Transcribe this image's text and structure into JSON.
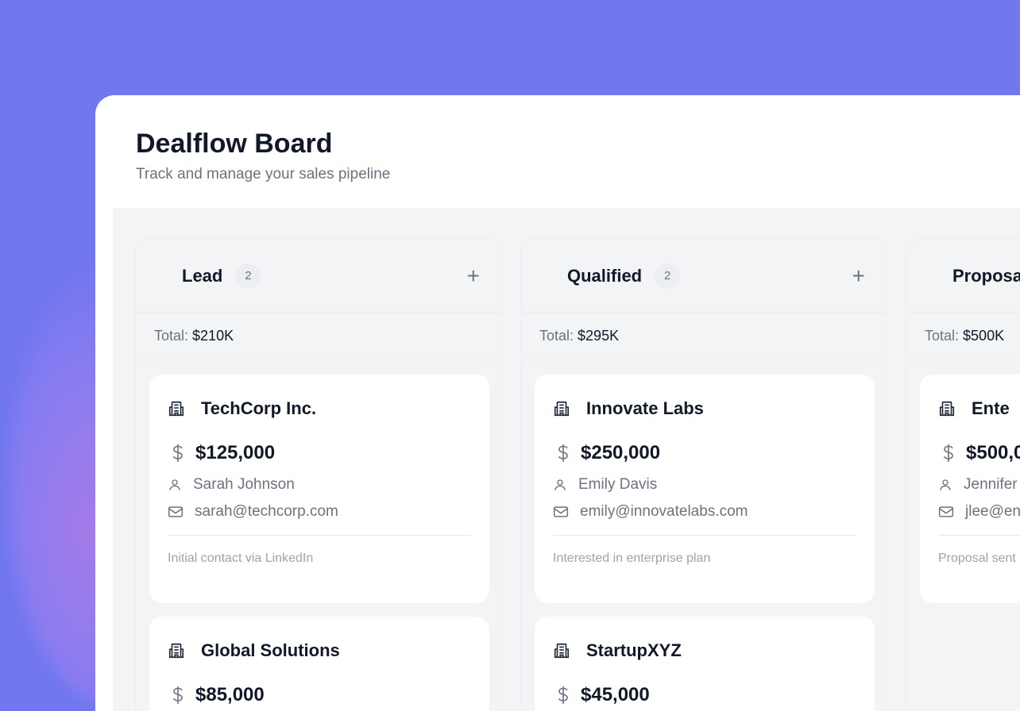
{
  "header": {
    "title": "Dealflow Board",
    "subtitle": "Track and manage your sales pipeline"
  },
  "colors": {
    "background": "#7077ef",
    "accent_text": "#111827",
    "muted_text": "#6b7280"
  },
  "columns": [
    {
      "name": "Lead",
      "count": "2",
      "total_label": "Total:",
      "total": "$210K",
      "cards": [
        {
          "company": "TechCorp Inc.",
          "amount": "$125,000",
          "contact": "Sarah Johnson",
          "email": "sarah@techcorp.com",
          "note": "Initial contact via LinkedIn"
        },
        {
          "company": "Global Solutions",
          "amount": "$85,000"
        }
      ]
    },
    {
      "name": "Qualified",
      "count": "2",
      "total_label": "Total:",
      "total": "$295K",
      "cards": [
        {
          "company": "Innovate Labs",
          "amount": "$250,000",
          "contact": "Emily Davis",
          "email": "emily@innovatelabs.com",
          "note": "Interested in enterprise plan"
        },
        {
          "company": "StartupXYZ",
          "amount": "$45,000"
        }
      ]
    },
    {
      "name": "Proposa",
      "total_label": "Total:",
      "total": "$500K",
      "cards": [
        {
          "company": "Ente",
          "amount": "$500,0",
          "contact": "Jennifer",
          "email": "jlee@en",
          "note": "Proposal sent"
        }
      ]
    }
  ],
  "icons": {
    "company": "building-icon",
    "amount": "dollar-icon",
    "contact": "user-icon",
    "email": "mail-icon",
    "add": "plus-icon"
  }
}
